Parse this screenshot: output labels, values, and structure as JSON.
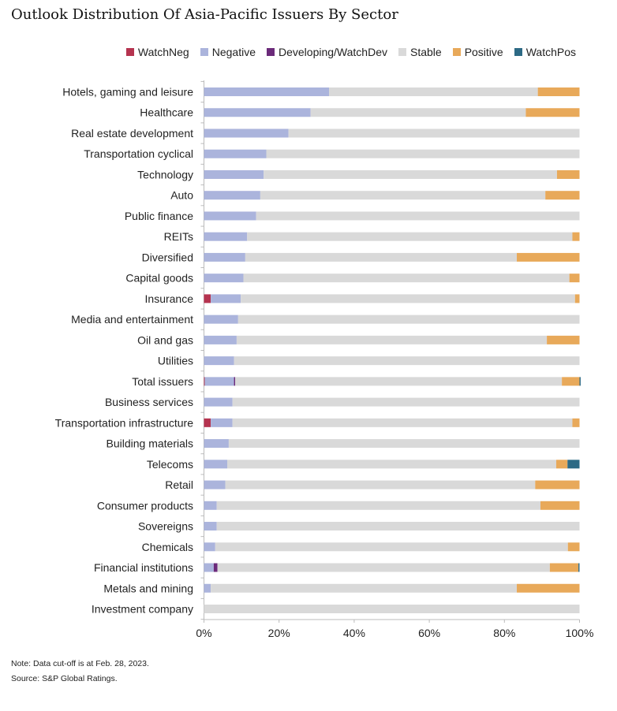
{
  "chart_data": {
    "type": "bar",
    "stacked": true,
    "orientation": "horizontal",
    "title": "Outlook Distribution Of Asia-Pacific Issuers By Sector",
    "xlabel": "",
    "ylabel": "",
    "xlim": [
      0,
      100
    ],
    "x_ticks": [
      "0%",
      "20%",
      "40%",
      "60%",
      "80%",
      "100%"
    ],
    "legend_position": "top-right",
    "categories": [
      "Hotels, gaming and leisure",
      "Healthcare",
      "Real estate development",
      "Transportation cyclical",
      "Technology",
      "Auto",
      "Public finance",
      "REITs",
      "Diversified",
      "Capital goods",
      "Insurance",
      "Media and entertainment",
      "Oil and gas",
      "Utilities",
      "Total issuers",
      "Business services",
      "Transportation infrastructure",
      "Building materials",
      "Telecoms",
      "Retail",
      "Consumer products",
      "Sovereigns",
      "Chemicals",
      "Financial institutions",
      "Metals and mining",
      "Investment company"
    ],
    "series": [
      {
        "name": "WatchNeg",
        "color": "#b5334f",
        "values": [
          0,
          0,
          0,
          0,
          0,
          0,
          0,
          0,
          0,
          0,
          1.8,
          0,
          0,
          0,
          0.2,
          0,
          1.8,
          0,
          0,
          0,
          0,
          0,
          0,
          0,
          0,
          0
        ]
      },
      {
        "name": "Negative",
        "color": "#abb4dc",
        "values": [
          33.3,
          28.4,
          22.5,
          16.6,
          15.9,
          15.0,
          13.9,
          11.5,
          11.0,
          10.5,
          8.0,
          9.1,
          8.7,
          8.0,
          7.8,
          7.6,
          5.8,
          6.6,
          6.2,
          5.7,
          3.4,
          3.4,
          3.0,
          2.6,
          1.8,
          0
        ]
      },
      {
        "name": "Developing/WatchDev",
        "color": "#6b2a7a",
        "values": [
          0,
          0,
          0,
          0,
          0,
          0,
          0,
          0,
          0,
          0,
          0,
          0,
          0,
          0,
          0.3,
          0,
          0,
          0,
          0,
          0,
          0,
          0,
          0,
          1.0,
          0,
          0
        ]
      },
      {
        "name": "Stable",
        "color": "#d9d9d9",
        "values": [
          55.6,
          57.3,
          77.5,
          83.4,
          78.1,
          75.9,
          86.1,
          86.6,
          72.3,
          86.8,
          89.0,
          90.9,
          82.6,
          92.0,
          87.0,
          92.4,
          90.5,
          93.4,
          87.6,
          82.5,
          86.2,
          96.6,
          93.9,
          88.5,
          81.5,
          100
        ]
      },
      {
        "name": "Positive",
        "color": "#e8a95a",
        "values": [
          11.1,
          14.3,
          0,
          0,
          6.0,
          9.1,
          0,
          1.9,
          16.7,
          2.7,
          1.2,
          0,
          8.7,
          0,
          4.7,
          0,
          1.9,
          0,
          3.0,
          11.8,
          10.4,
          0,
          3.1,
          7.6,
          16.7,
          0
        ]
      },
      {
        "name": "WatchPos",
        "color": "#2d6a85",
        "values": [
          0,
          0,
          0,
          0,
          0,
          0,
          0,
          0,
          0,
          0,
          0,
          0,
          0,
          0,
          0.3,
          0,
          0,
          0,
          3.2,
          0,
          0,
          0,
          0,
          0.3,
          0,
          0
        ]
      }
    ]
  },
  "notes": {
    "note": "Note: Data cut-off is at Feb. 28, 2023.",
    "source": "Source: S&P Global Ratings."
  }
}
